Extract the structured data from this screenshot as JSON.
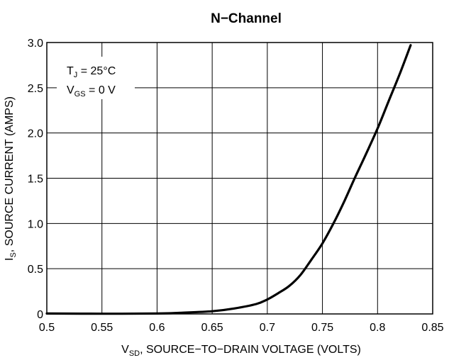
{
  "chart_data": {
    "type": "line",
    "title": "N−Channel",
    "xlabel": {
      "main": "V",
      "sub": "SD",
      "rest": ", SOURCE−TO−DRAIN VOLTAGE (VOLTS)"
    },
    "ylabel": {
      "main": "I",
      "sub": "S",
      "rest": ", SOURCE CURRENT (AMPS)"
    },
    "xlim": [
      0.5,
      0.85
    ],
    "ylim": [
      0,
      3.0
    ],
    "x_ticks": [
      "0.5",
      "0.55",
      "0.6",
      "0.65",
      "0.7",
      "0.75",
      "0.8",
      "0.85"
    ],
    "y_ticks": [
      "0",
      "0.5",
      "1.0",
      "1.5",
      "2.0",
      "2.5",
      "3.0"
    ],
    "grid": true,
    "legend_position": "top-left",
    "annotations": [
      {
        "main": "T",
        "sub": "J",
        "rest": " = 25°C"
      },
      {
        "main": "V",
        "sub": "GS",
        "rest": " = 0 V"
      }
    ],
    "series": [
      {
        "x": [
          0.5,
          0.55,
          0.6,
          0.62,
          0.65,
          0.67,
          0.69,
          0.7,
          0.71,
          0.72,
          0.73,
          0.74,
          0.75,
          0.76,
          0.77,
          0.78,
          0.79,
          0.8,
          0.81,
          0.82,
          0.83
        ],
        "y": [
          0.005,
          0.002,
          0.005,
          0.012,
          0.03,
          0.06,
          0.11,
          0.16,
          0.23,
          0.31,
          0.43,
          0.6,
          0.78,
          1.0,
          1.25,
          1.52,
          1.78,
          2.05,
          2.35,
          2.65,
          2.97
        ]
      }
    ]
  }
}
